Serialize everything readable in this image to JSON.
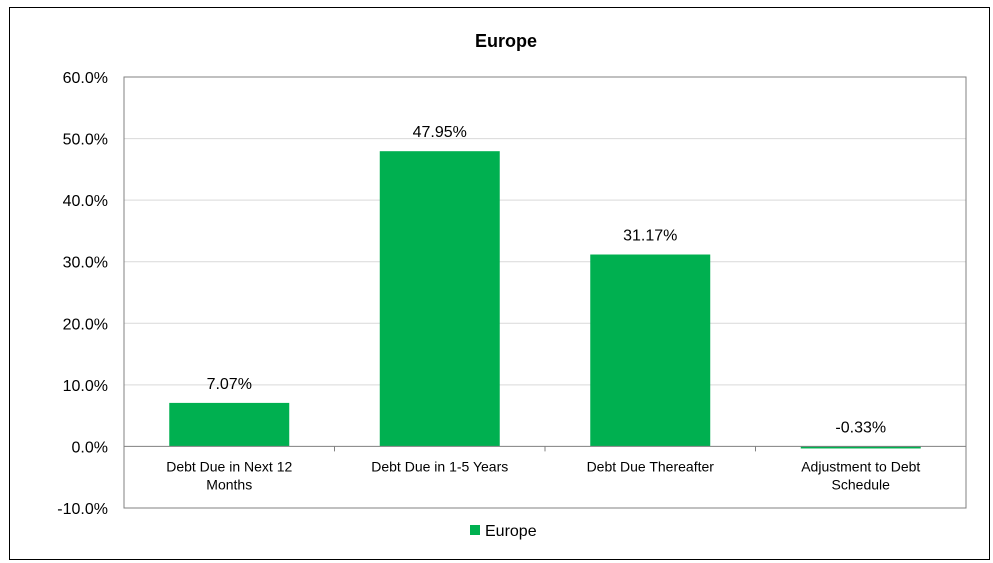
{
  "chart_data": {
    "type": "bar",
    "title": "Europe",
    "categories": [
      [
        "Debt Due in Next 12",
        "Months"
      ],
      [
        "Debt Due in 1-5 Years"
      ],
      [
        "Debt Due Thereafter"
      ],
      [
        "Adjustment to Debt",
        "Schedule"
      ]
    ],
    "series": [
      {
        "name": "Europe",
        "values": [
          7.07,
          47.95,
          31.17,
          -0.33
        ]
      }
    ],
    "data_labels": [
      "7.07%",
      "47.95%",
      "31.17%",
      "-0.33%"
    ],
    "y_ticks": [
      "60.0%",
      "50.0%",
      "40.0%",
      "30.0%",
      "20.0%",
      "10.0%",
      "0.0%",
      "-10.0%"
    ],
    "ylim": [
      -10,
      60
    ],
    "grid": true,
    "legend_position": "bottom",
    "bar_color": "#00b050",
    "grid_color": "#d9d9d9",
    "axis_color": "#808080"
  }
}
